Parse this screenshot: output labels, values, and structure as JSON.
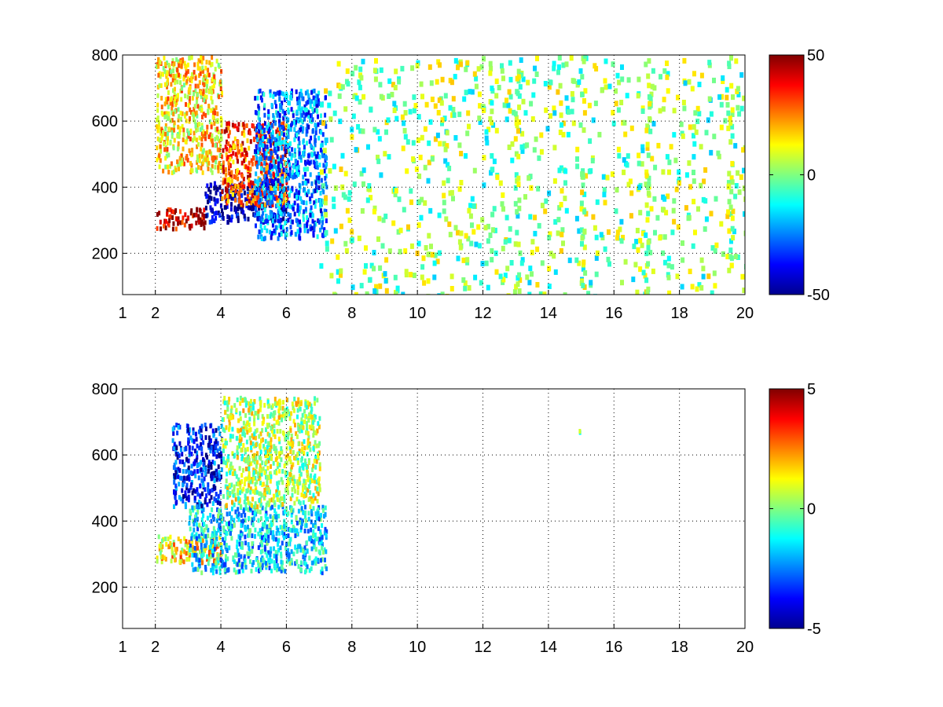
{
  "figure": {
    "background": "#ffffff",
    "colormap": "jet"
  },
  "chart_data": [
    {
      "type": "heatmap",
      "title": "",
      "xlabel": "",
      "ylabel": "",
      "xlim": [
        1,
        20
      ],
      "ylim": [
        75,
        800
      ],
      "x_ticks": [
        1,
        2,
        4,
        6,
        8,
        10,
        12,
        14,
        16,
        18,
        20
      ],
      "y_ticks": [
        200,
        400,
        600,
        800
      ],
      "grid": true,
      "colorbar": {
        "min": -50,
        "max": 50,
        "ticks": [
          -50,
          0,
          50
        ],
        "placement": "right"
      },
      "summary_regions": [
        {
          "x_range": [
            2,
            3.5
          ],
          "y_range": [
            280,
            340
          ],
          "value": 45
        },
        {
          "x_range": [
            3.5,
            6
          ],
          "y_range": [
            300,
            420
          ],
          "value": -45
        },
        {
          "x_range": [
            2,
            4
          ],
          "y_range": [
            450,
            800
          ],
          "value": 15
        },
        {
          "x_range": [
            4,
            6
          ],
          "y_range": [
            350,
            600
          ],
          "value": 30
        },
        {
          "x_range": [
            5,
            7.2
          ],
          "y_range": [
            250,
            700
          ],
          "value": -25
        },
        {
          "x_range": [
            7,
            20
          ],
          "y_range": [
            75,
            800
          ],
          "value": 0,
          "note": "sparse"
        }
      ],
      "dense_columns": [
        13,
        15,
        17,
        19.5
      ]
    },
    {
      "type": "heatmap",
      "title": "",
      "xlabel": "",
      "ylabel": "",
      "xlim": [
        1,
        20
      ],
      "ylim": [
        75,
        800
      ],
      "x_ticks": [
        1,
        2,
        4,
        6,
        8,
        10,
        12,
        14,
        16,
        18,
        20
      ],
      "y_ticks": [
        200,
        400,
        600,
        800
      ],
      "grid": true,
      "colorbar": {
        "min": -5,
        "max": 5,
        "ticks": [
          -5,
          0,
          5
        ],
        "placement": "right"
      },
      "summary_regions": [
        {
          "x_range": [
            2,
            4
          ],
          "y_range": [
            280,
            360
          ],
          "value": 1.5
        },
        {
          "x_range": [
            3,
            7.2
          ],
          "y_range": [
            250,
            450
          ],
          "value": -1.5
        },
        {
          "x_range": [
            2.5,
            4
          ],
          "y_range": [
            450,
            700
          ],
          "value": -3.5
        },
        {
          "x_range": [
            4,
            7
          ],
          "y_range": [
            450,
            780
          ],
          "value": 0.5
        },
        {
          "x_range": [
            14.9,
            15
          ],
          "y_range": [
            670,
            680
          ],
          "value": 0
        }
      ]
    }
  ]
}
